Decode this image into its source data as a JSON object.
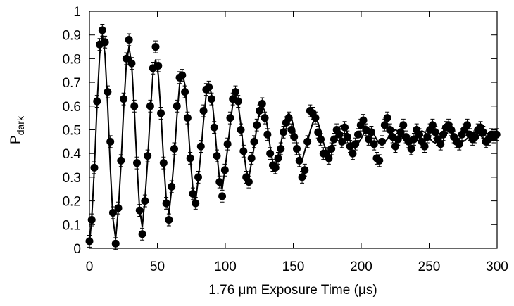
{
  "chart_data": {
    "type": "scatter",
    "xlabel": "1.76 μm Exposure Time (μs)",
    "ylabel": "P",
    "ylabel_subscript": "dark",
    "xlim": [
      0,
      300
    ],
    "xticks": [
      0,
      50,
      100,
      150,
      200,
      250,
      300
    ],
    "ylim": [
      0,
      1
    ],
    "yticks": [
      0,
      0.1,
      0.2,
      0.3,
      0.4,
      0.5,
      0.6,
      0.7,
      0.8,
      0.9,
      1
    ],
    "series": [
      {
        "style": "points",
        "color": "#000000",
        "error": 0.025,
        "x": [
          0,
          1.66,
          3.62,
          5.58,
          7.54,
          9.5,
          11.46,
          13.42,
          15.38,
          17.34,
          19.3,
          21.26,
          23.22,
          25.18,
          27.14,
          29.1,
          31.06,
          33.02,
          34.98,
          36.94,
          38.9,
          40.86,
          42.82,
          44.78,
          46.74,
          48.7,
          50.66,
          52.62,
          54.58,
          56.54,
          58.5,
          60.46,
          62.42,
          64.38,
          66.34,
          68.3,
          70.26,
          72.22,
          74.18,
          76.14,
          78.1,
          80.06,
          82.02,
          83.98,
          85.94,
          87.9,
          89.86,
          91.82,
          93.78,
          95.74,
          97.7,
          99.66,
          101.62,
          103.58,
          105.54,
          107.5,
          109.46,
          111.42,
          113.38,
          115.34,
          117.3,
          119.26,
          121.22,
          123.18,
          125.14,
          127.1,
          129.06,
          131.02,
          132.98,
          134.94,
          136.9,
          138.86,
          140.82,
          142.78,
          144.74,
          146.7,
          148.66,
          150.62,
          152.58,
          154.54,
          156.5,
          158.46,
          160.42,
          162.38,
          164.34,
          166.3,
          168.26,
          170.22,
          172.18,
          174.14,
          176.1,
          178.06,
          180.02,
          181.98,
          183.94,
          185.9,
          187.86,
          189.82,
          191.78,
          193.74,
          195.7,
          197.66,
          199.62,
          201.58,
          203.54,
          205.5,
          207.46,
          209.42,
          211.38,
          213.34,
          215.3,
          217.26,
          219.22,
          221.18,
          223.14,
          225.1,
          227.06,
          229.02,
          230.98,
          232.94,
          234.9,
          236.86,
          238.82,
          240.78,
          242.74,
          244.7,
          246.66,
          248.62,
          250.58,
          252.54,
          254.5,
          256.46,
          258.42,
          260.38,
          262.34,
          264.3,
          266.26,
          268.22,
          270.18,
          272.14,
          274.1,
          276.06,
          278.02,
          279.98,
          281.94,
          283.9,
          285.86,
          287.82,
          289.78,
          291.74,
          293.7,
          295.66,
          297.62,
          299.58
        ],
        "values": [
          0.03,
          0.12,
          0.34,
          0.62,
          0.86,
          0.92,
          0.87,
          0.66,
          0.45,
          0.15,
          0.02,
          0.17,
          0.37,
          0.63,
          0.8,
          0.88,
          0.78,
          0.6,
          0.36,
          0.16,
          0.06,
          0.2,
          0.39,
          0.6,
          0.76,
          0.85,
          0.77,
          0.57,
          0.36,
          0.19,
          0.12,
          0.26,
          0.42,
          0.6,
          0.72,
          0.73,
          0.66,
          0.55,
          0.38,
          0.23,
          0.19,
          0.3,
          0.43,
          0.58,
          0.67,
          0.68,
          0.63,
          0.51,
          0.39,
          0.28,
          0.22,
          0.33,
          0.44,
          0.55,
          0.63,
          0.66,
          0.62,
          0.5,
          0.41,
          0.3,
          0.28,
          0.38,
          0.45,
          0.52,
          0.58,
          0.61,
          0.55,
          0.48,
          0.4,
          0.35,
          0.34,
          0.38,
          0.42,
          0.49,
          0.53,
          0.55,
          0.5,
          0.47,
          0.42,
          0.37,
          0.3,
          0.33,
          0.45,
          0.58,
          0.57,
          0.55,
          0.49,
          0.46,
          0.4,
          0.4,
          0.38,
          0.42,
          0.46,
          0.5,
          0.48,
          0.45,
          0.51,
          0.47,
          0.43,
          0.4,
          0.44,
          0.48,
          0.52,
          0.54,
          0.5,
          0.46,
          0.49,
          0.44,
          0.38,
          0.37,
          0.45,
          0.52,
          0.55,
          0.5,
          0.47,
          0.43,
          0.46,
          0.49,
          0.52,
          0.47,
          0.45,
          0.42,
          0.46,
          0.5,
          0.48,
          0.45,
          0.43,
          0.47,
          0.5,
          0.52,
          0.49,
          0.46,
          0.44,
          0.48,
          0.51,
          0.52,
          0.5,
          0.47,
          0.45,
          0.44,
          0.48,
          0.5,
          0.52,
          0.48,
          0.46,
          0.47,
          0.5,
          0.51,
          0.49,
          0.45,
          0.46,
          0.48,
          0.47,
          0.48
        ]
      },
      {
        "style": "line",
        "color": "#000000",
        "x": [
          0,
          1.66,
          3.62,
          5.58,
          7.54,
          9.5,
          11.46,
          13.42,
          15.38,
          17.34,
          19.3,
          21.26,
          23.22,
          25.18,
          27.14,
          29.1,
          31.06,
          33.02,
          34.98,
          36.94,
          38.9,
          40.86,
          42.82,
          44.78,
          46.74,
          48.7,
          50.66,
          52.62,
          54.58,
          56.54,
          58.5,
          60.46,
          62.42,
          64.38,
          66.34,
          68.3,
          70.26,
          72.22,
          74.18,
          76.14,
          78.1,
          80.06,
          82.02,
          83.98,
          85.94,
          87.9,
          89.86,
          91.82,
          93.78,
          95.74,
          97.7,
          99.66,
          101.62,
          103.58,
          105.54,
          107.5,
          109.46,
          111.42,
          113.38,
          115.34,
          117.3,
          119.26,
          121.22,
          123.18,
          125.14,
          127.1,
          129.06,
          131.02,
          132.98,
          134.94,
          136.9,
          138.86,
          140.82,
          142.78,
          144.74,
          146.7,
          148.66,
          150.62,
          152.58,
          154.54,
          156.5,
          158.46,
          160.42,
          162.38,
          164.34,
          166.3,
          168.26,
          170.22,
          172.18,
          174.14,
          176.1,
          178.06,
          180.02,
          181.98,
          183.94,
          185.9,
          187.86,
          189.82,
          191.78,
          193.74,
          195.7,
          197.66,
          199.62,
          201.58,
          203.54,
          205.5,
          207.46,
          209.42,
          211.38,
          213.34,
          215.3,
          217.26,
          219.22,
          221.18,
          223.14,
          225.1,
          227.06,
          229.02,
          230.98,
          232.94,
          234.9,
          236.86,
          238.82,
          240.78,
          242.74,
          244.7,
          246.66,
          248.62,
          250.58,
          252.54,
          254.5,
          256.46,
          258.42,
          260.38,
          262.34,
          264.3,
          266.26,
          268.22,
          270.18,
          272.14,
          274.1,
          276.06,
          278.02,
          279.98,
          281.94,
          283.9,
          285.86,
          287.82,
          289.78,
          291.74,
          293.7,
          295.66,
          297.62,
          299.58
        ],
        "values": [
          0.02,
          0.123,
          0.337,
          0.603,
          0.817,
          0.899,
          0.817,
          0.603,
          0.337,
          0.123,
          0.041,
          0.163,
          0.353,
          0.587,
          0.777,
          0.85,
          0.777,
          0.587,
          0.353,
          0.163,
          0.09,
          0.207,
          0.37,
          0.57,
          0.733,
          0.795,
          0.733,
          0.57,
          0.37,
          0.207,
          0.145,
          0.25,
          0.386,
          0.554,
          0.69,
          0.742,
          0.69,
          0.554,
          0.386,
          0.25,
          0.198,
          0.291,
          0.402,
          0.538,
          0.649,
          0.691,
          0.649,
          0.538,
          0.402,
          0.291,
          0.249,
          0.33,
          0.417,
          0.523,
          0.61,
          0.643,
          0.61,
          0.523,
          0.417,
          0.33,
          0.297,
          0.362,
          0.429,
          0.511,
          0.578,
          0.603,
          0.578,
          0.511,
          0.429,
          0.362,
          0.337,
          0.389,
          0.439,
          0.501,
          0.551,
          0.57,
          0.551,
          0.501,
          0.439,
          0.389,
          0.37,
          0.411,
          0.447,
          0.493,
          0.529,
          0.543,
          0.529,
          0.493,
          0.447,
          0.411,
          0.397,
          0.43,
          0.455,
          0.485,
          0.51,
          0.52,
          0.51,
          0.485,
          0.455,
          0.43,
          0.42,
          0.442,
          0.459,
          0.481,
          0.498,
          0.505,
          0.498,
          0.481,
          0.459,
          0.442,
          0.435,
          0.446,
          0.461,
          0.479,
          0.494,
          0.5,
          0.494,
          0.479,
          0.461,
          0.446,
          0.44,
          0.45,
          0.462,
          0.478,
          0.49,
          0.495,
          0.49,
          0.478,
          0.462,
          0.45,
          0.445,
          0.452,
          0.463,
          0.477,
          0.488,
          0.492,
          0.488,
          0.477,
          0.463,
          0.452,
          0.448,
          0.454,
          0.464,
          0.476,
          0.486,
          0.49,
          0.486,
          0.476,
          0.464,
          0.454,
          0.45,
          0.454,
          0.464,
          0.476
        ]
      }
    ]
  }
}
